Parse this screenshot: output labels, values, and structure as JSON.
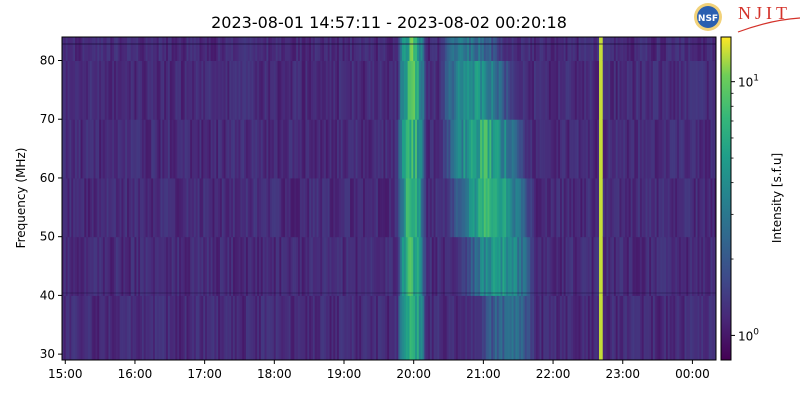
{
  "chart_data": {
    "type": "heatmap",
    "title": "2023-08-01 14:57:11 - 2023-08-02 00:20:18",
    "ylabel": "Frequency (MHz)",
    "xlabel": "",
    "x_ticks": [
      "15:00",
      "16:00",
      "17:00",
      "18:00",
      "19:00",
      "20:00",
      "21:00",
      "22:00",
      "23:00",
      "00:00"
    ],
    "x_range": [
      "2023-08-01 14:57:11",
      "2023-08-02 00:20:18"
    ],
    "y_ticks": [
      30,
      40,
      50,
      60,
      70,
      80
    ],
    "ylim": [
      29,
      84
    ],
    "colorbar": {
      "label": "Intensity [s.f.u]",
      "scale": "log",
      "range": [
        0.8,
        15
      ],
      "ticks": [
        {
          "value": 1,
          "base": "10",
          "exp": "0"
        },
        {
          "value": 10,
          "base": "10",
          "exp": "1"
        }
      ],
      "colormap": "viridis"
    },
    "features": [
      {
        "description": "strong broadband emission",
        "start": "19:45",
        "end": "20:10",
        "freq_range_mhz": [
          29,
          84
        ],
        "peak_intensity": 12
      },
      {
        "description": "drifting enhanced emission band",
        "start": "20:20",
        "end": "21:45",
        "freq_range_mhz": [
          30,
          84
        ],
        "peak_intensity": 10
      },
      {
        "description": "narrow bright spike",
        "time": "22:40",
        "freq_range_mhz": [
          29,
          84
        ],
        "peak_intensity": 13
      }
    ],
    "grid": false
  },
  "logos": {
    "nsf": "NSF",
    "njit": "NJIT"
  }
}
